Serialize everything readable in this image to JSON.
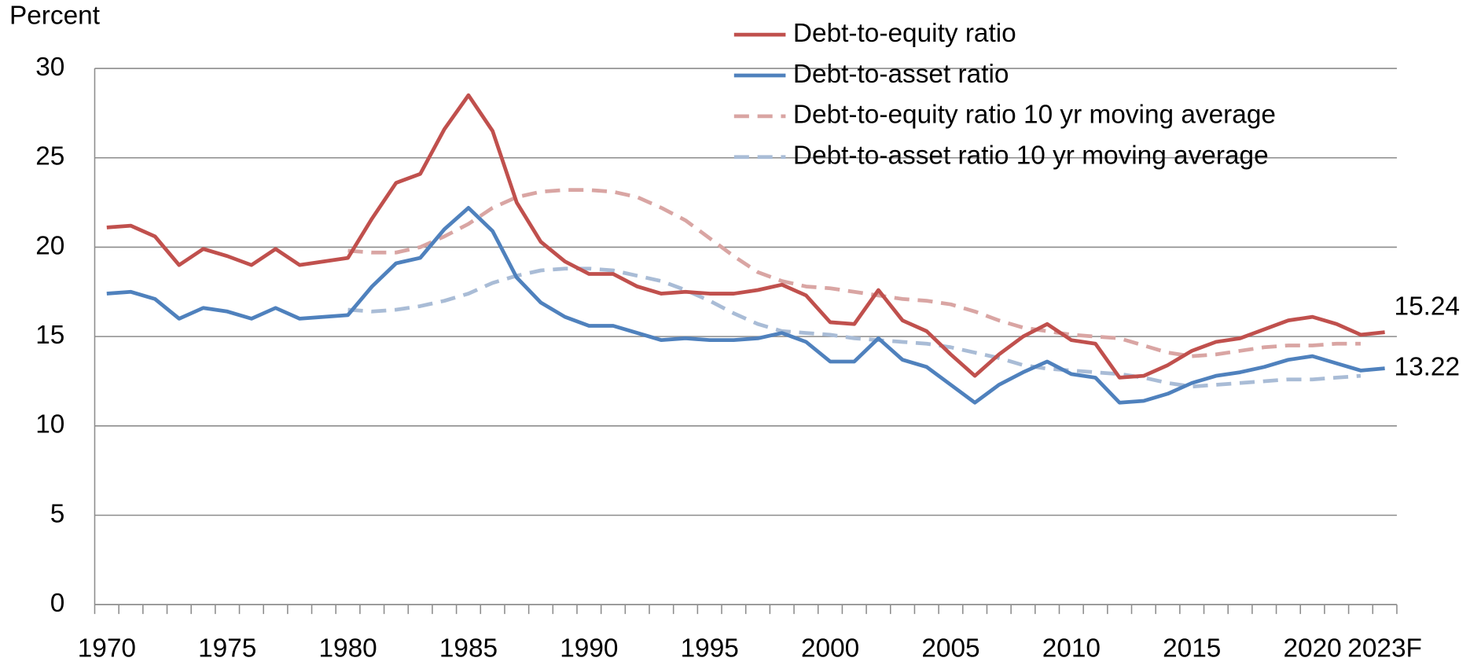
{
  "chart_data": {
    "type": "line",
    "y_label": "Percent",
    "categories": [
      "1970",
      null,
      null,
      null,
      null,
      "1975",
      null,
      null,
      null,
      null,
      "1980",
      null,
      null,
      null,
      null,
      "1985",
      null,
      null,
      null,
      null,
      "1990",
      null,
      null,
      null,
      null,
      "1995",
      null,
      null,
      null,
      null,
      "2000",
      null,
      null,
      null,
      null,
      "2005",
      null,
      null,
      null,
      null,
      "2010",
      null,
      null,
      null,
      null,
      "2015",
      null,
      null,
      null,
      null,
      "2020",
      null,
      null,
      "2023F"
    ],
    "series": [
      {
        "name": "Debt-to-equity ratio",
        "color": "#c0504d",
        "dashed": false,
        "values": [
          21.1,
          21.2,
          20.6,
          19.0,
          19.9,
          19.5,
          19.0,
          19.9,
          19.0,
          19.2,
          19.4,
          21.6,
          23.6,
          24.1,
          26.6,
          28.5,
          26.5,
          22.5,
          20.3,
          19.2,
          18.5,
          18.5,
          17.8,
          17.4,
          17.5,
          17.4,
          17.4,
          17.6,
          17.9,
          17.3,
          15.8,
          15.7,
          17.6,
          15.9,
          15.3,
          14.0,
          12.8,
          14.0,
          15.0,
          15.7,
          14.8,
          14.6,
          12.7,
          12.8,
          13.4,
          14.2,
          14.7,
          14.9,
          15.4,
          15.9,
          16.1,
          15.7,
          15.1,
          15.24
        ]
      },
      {
        "name": "Debt-to-asset ratio",
        "color": "#4f81bd",
        "dashed": false,
        "values": [
          17.4,
          17.5,
          17.1,
          16.0,
          16.6,
          16.4,
          16.0,
          16.6,
          16.0,
          16.1,
          16.2,
          17.8,
          19.1,
          19.4,
          21.0,
          22.2,
          20.9,
          18.3,
          16.9,
          16.1,
          15.6,
          15.6,
          15.2,
          14.8,
          14.9,
          14.8,
          14.8,
          14.9,
          15.2,
          14.7,
          13.6,
          13.6,
          14.9,
          13.7,
          13.3,
          12.3,
          11.3,
          12.3,
          13.0,
          13.6,
          12.9,
          12.7,
          11.3,
          11.4,
          11.8,
          12.4,
          12.8,
          13.0,
          13.3,
          13.7,
          13.9,
          13.5,
          13.1,
          13.22
        ]
      },
      {
        "name": "Debt-to-equity ratio 10 yr moving average",
        "color": "#d9a5a3",
        "dashed": true,
        "values": [
          null,
          null,
          null,
          null,
          null,
          null,
          null,
          null,
          null,
          null,
          19.8,
          19.7,
          19.7,
          20.0,
          20.6,
          21.3,
          22.2,
          22.8,
          23.1,
          23.2,
          23.2,
          23.1,
          22.8,
          22.2,
          21.5,
          20.5,
          19.5,
          18.6,
          18.1,
          17.8,
          17.7,
          17.5,
          17.3,
          17.1,
          17.0,
          16.8,
          16.4,
          15.9,
          15.5,
          15.3,
          15.1,
          15.0,
          14.9,
          14.5,
          14.1,
          13.9,
          14.0,
          14.2,
          14.4,
          14.5,
          14.5,
          14.6,
          14.6,
          null
        ]
      },
      {
        "name": "Debt-to-asset ratio 10 yr moving average",
        "color": "#a9bcd6",
        "dashed": true,
        "values": [
          null,
          null,
          null,
          null,
          null,
          null,
          null,
          null,
          null,
          null,
          16.5,
          16.4,
          16.5,
          16.7,
          17.0,
          17.4,
          18.0,
          18.4,
          18.7,
          18.8,
          18.8,
          18.7,
          18.4,
          18.1,
          17.6,
          17.0,
          16.3,
          15.7,
          15.3,
          15.2,
          15.1,
          14.9,
          14.8,
          14.7,
          14.6,
          14.4,
          14.1,
          13.8,
          13.4,
          13.2,
          13.1,
          13.0,
          12.9,
          12.7,
          12.4,
          12.2,
          12.3,
          12.4,
          12.5,
          12.6,
          12.6,
          12.7,
          12.8,
          null
        ]
      }
    ],
    "end_labels": [
      0,
      1
    ],
    "ylim": [
      0,
      30
    ],
    "yticks": [
      0,
      5,
      10,
      15,
      20,
      25,
      30
    ],
    "grid": true,
    "legend": "top"
  }
}
